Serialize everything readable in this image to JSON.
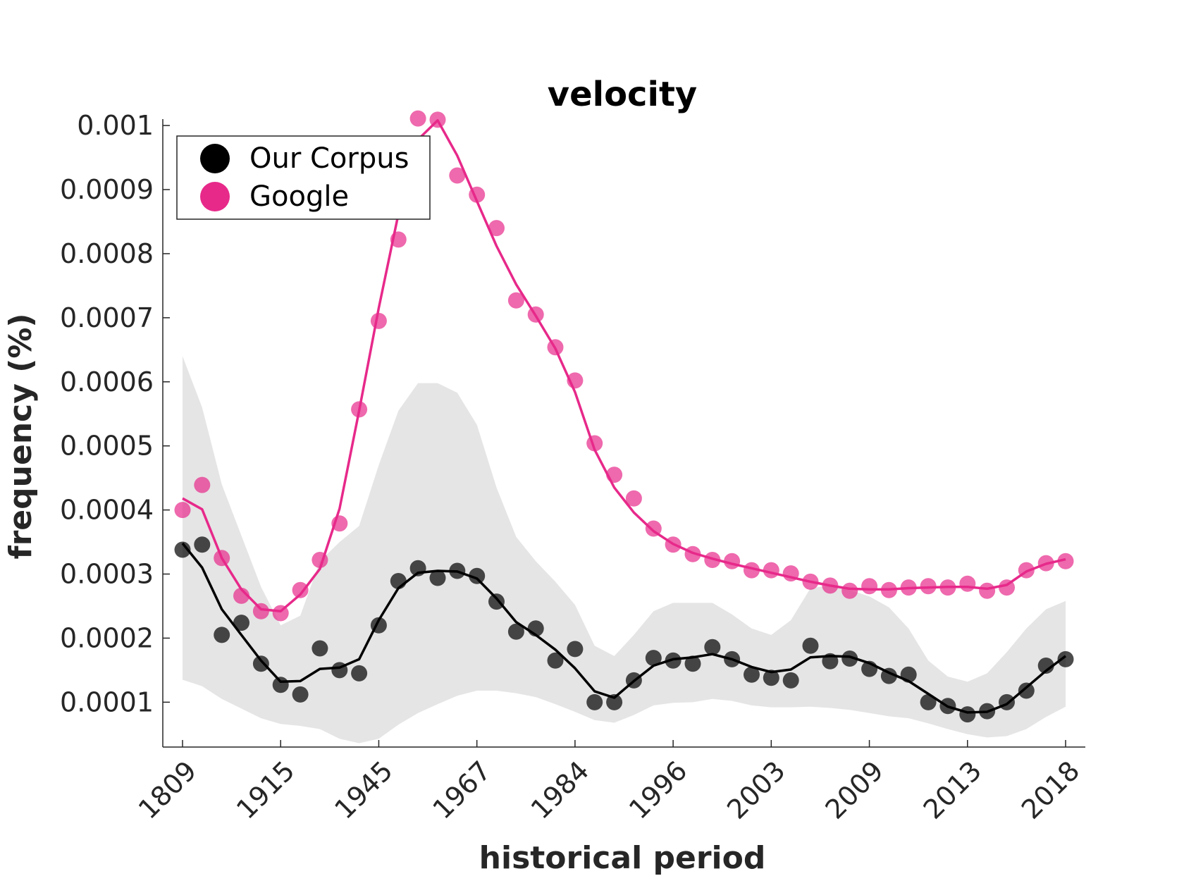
{
  "chart_data": {
    "type": "scatter",
    "title": "velocity",
    "xlabel": "historical period",
    "ylabel": "frequency (%)",
    "x_tick_labels": [
      "1809",
      "1915",
      "1945",
      "1967",
      "1984",
      "1996",
      "2003",
      "2009",
      "2013",
      "2018"
    ],
    "y_tick_labels": [
      "0.0001",
      "0.0002",
      "0.0003",
      "0.0004",
      "0.0005",
      "0.0006",
      "0.0007",
      "0.0008",
      "0.0009",
      "0.001"
    ],
    "ylim": [
      3e-05,
      0.00101
    ],
    "grid": false,
    "legend_position": "top-left",
    "series": [
      {
        "name": "Our Corpus",
        "color": "#000000",
        "marker_opacity": 0.7,
        "points": [
          0.000338,
          0.000346,
          0.000205,
          0.000224,
          0.00016,
          0.000127,
          0.000112,
          0.000184,
          0.00015,
          0.000145,
          0.00022,
          0.000289,
          0.000309,
          0.000294,
          0.000305,
          0.000297,
          0.000257,
          0.00021,
          0.000215,
          0.000165,
          0.000183,
          0.0001,
          0.0001,
          0.000134,
          0.000169,
          0.000165,
          0.00016,
          0.000186,
          0.000167,
          0.000143,
          0.000138,
          0.000134,
          0.000188,
          0.000164,
          0.000168,
          0.000152,
          0.000141,
          0.000143,
          0.0001,
          9.4e-05,
          8.1e-05,
          8.6e-05,
          0.0001,
          0.000118,
          0.000157,
          0.000167
        ],
        "smoothed": [
          0.000348,
          0.00031,
          0.000245,
          0.000205,
          0.000165,
          0.000132,
          0.000133,
          0.000152,
          0.000154,
          0.000167,
          0.000228,
          0.000278,
          0.000302,
          0.000305,
          0.000304,
          0.000293,
          0.000262,
          0.000225,
          0.000205,
          0.000182,
          0.000153,
          0.000117,
          0.000107,
          0.000133,
          0.000157,
          0.000167,
          0.00017,
          0.000175,
          0.000167,
          0.000155,
          0.000147,
          0.000151,
          0.00017,
          0.000172,
          0.000171,
          0.000161,
          0.000146,
          0.000133,
          0.000113,
          9.3e-05,
          8.4e-05,
          8.5e-05,
          9.7e-05,
          0.000123,
          0.000149,
          0.000172
        ]
      },
      {
        "name": "Google",
        "color": "#e7298a",
        "marker_opacity": 0.7,
        "points": [
          0.0004,
          0.000439,
          0.000325,
          0.000266,
          0.000242,
          0.000239,
          0.000275,
          0.000322,
          0.000379,
          0.000557,
          0.000695,
          0.000822,
          0.001011,
          0.001009,
          0.000922,
          0.000892,
          0.00084,
          0.000727,
          0.000705,
          0.000654,
          0.000602,
          0.000504,
          0.000455,
          0.000418,
          0.000371,
          0.000346,
          0.000331,
          0.000322,
          0.00032,
          0.000306,
          0.000306,
          0.000301,
          0.000288,
          0.000282,
          0.000274,
          0.000281,
          0.000275,
          0.000279,
          0.000281,
          0.000279,
          0.000285,
          0.000274,
          0.000279,
          0.000306,
          0.000317,
          0.00032
        ],
        "smoothed": [
          0.000418,
          0.000401,
          0.000325,
          0.000276,
          0.000245,
          0.000242,
          0.000268,
          0.000308,
          0.000402,
          0.000555,
          0.000715,
          0.000862,
          0.000978,
          0.001008,
          0.000953,
          0.000882,
          0.000812,
          0.000752,
          0.000703,
          0.000652,
          0.000584,
          0.000494,
          0.000435,
          0.000396,
          0.000367,
          0.000347,
          0.000333,
          0.000324,
          0.000316,
          0.000309,
          0.000302,
          0.000295,
          0.000288,
          0.000282,
          0.000277,
          0.000276,
          0.000276,
          0.000278,
          0.000279,
          0.00028,
          0.00028,
          0.000277,
          0.000283,
          0.000304,
          0.000316,
          0.000323
        ]
      }
    ],
    "confidence_band": {
      "color": "#e5e5e5",
      "lower": [
        0.000135,
        0.000125,
        0.000105,
        9e-05,
        7.5e-05,
        6.6e-05,
        6.3e-05,
        5.8e-05,
        4.3e-05,
        3.6e-05,
        4.3e-05,
        6.5e-05,
        8.3e-05,
        9.7e-05,
        0.00011,
        0.000118,
        0.000118,
        0.000114,
        0.000108,
        9.7e-05,
        8.5e-05,
        7.2e-05,
        6.8e-05,
        8e-05,
        9.5e-05,
        9.9e-05,
        0.0001,
        0.000105,
        0.000102,
        9.5e-05,
        9.2e-05,
        9.2e-05,
        9.3e-05,
        9.1e-05,
        8.8e-05,
        8.3e-05,
        7.8e-05,
        7.5e-05,
        6.7e-05,
        5.8e-05,
        5e-05,
        4.5e-05,
        4.7e-05,
        5.8e-05,
        7.7e-05,
        9.3e-05
      ],
      "upper": [
        0.00064,
        0.00056,
        0.00044,
        0.00036,
        0.00028,
        0.00022,
        0.000235,
        0.00032,
        0.00035,
        0.000375,
        0.00047,
        0.000555,
        0.000598,
        0.000598,
        0.000583,
        0.000533,
        0.000435,
        0.000358,
        0.00032,
        0.000288,
        0.000252,
        0.000188,
        0.000172,
        0.000205,
        0.000242,
        0.000255,
        0.000255,
        0.000255,
        0.000237,
        0.000215,
        0.000205,
        0.000228,
        0.000278,
        0.000282,
        0.000275,
        0.000265,
        0.000248,
        0.000215,
        0.000165,
        0.00014,
        0.000132,
        0.000145,
        0.000178,
        0.000215,
        0.000245,
        0.000258
      ]
    }
  }
}
